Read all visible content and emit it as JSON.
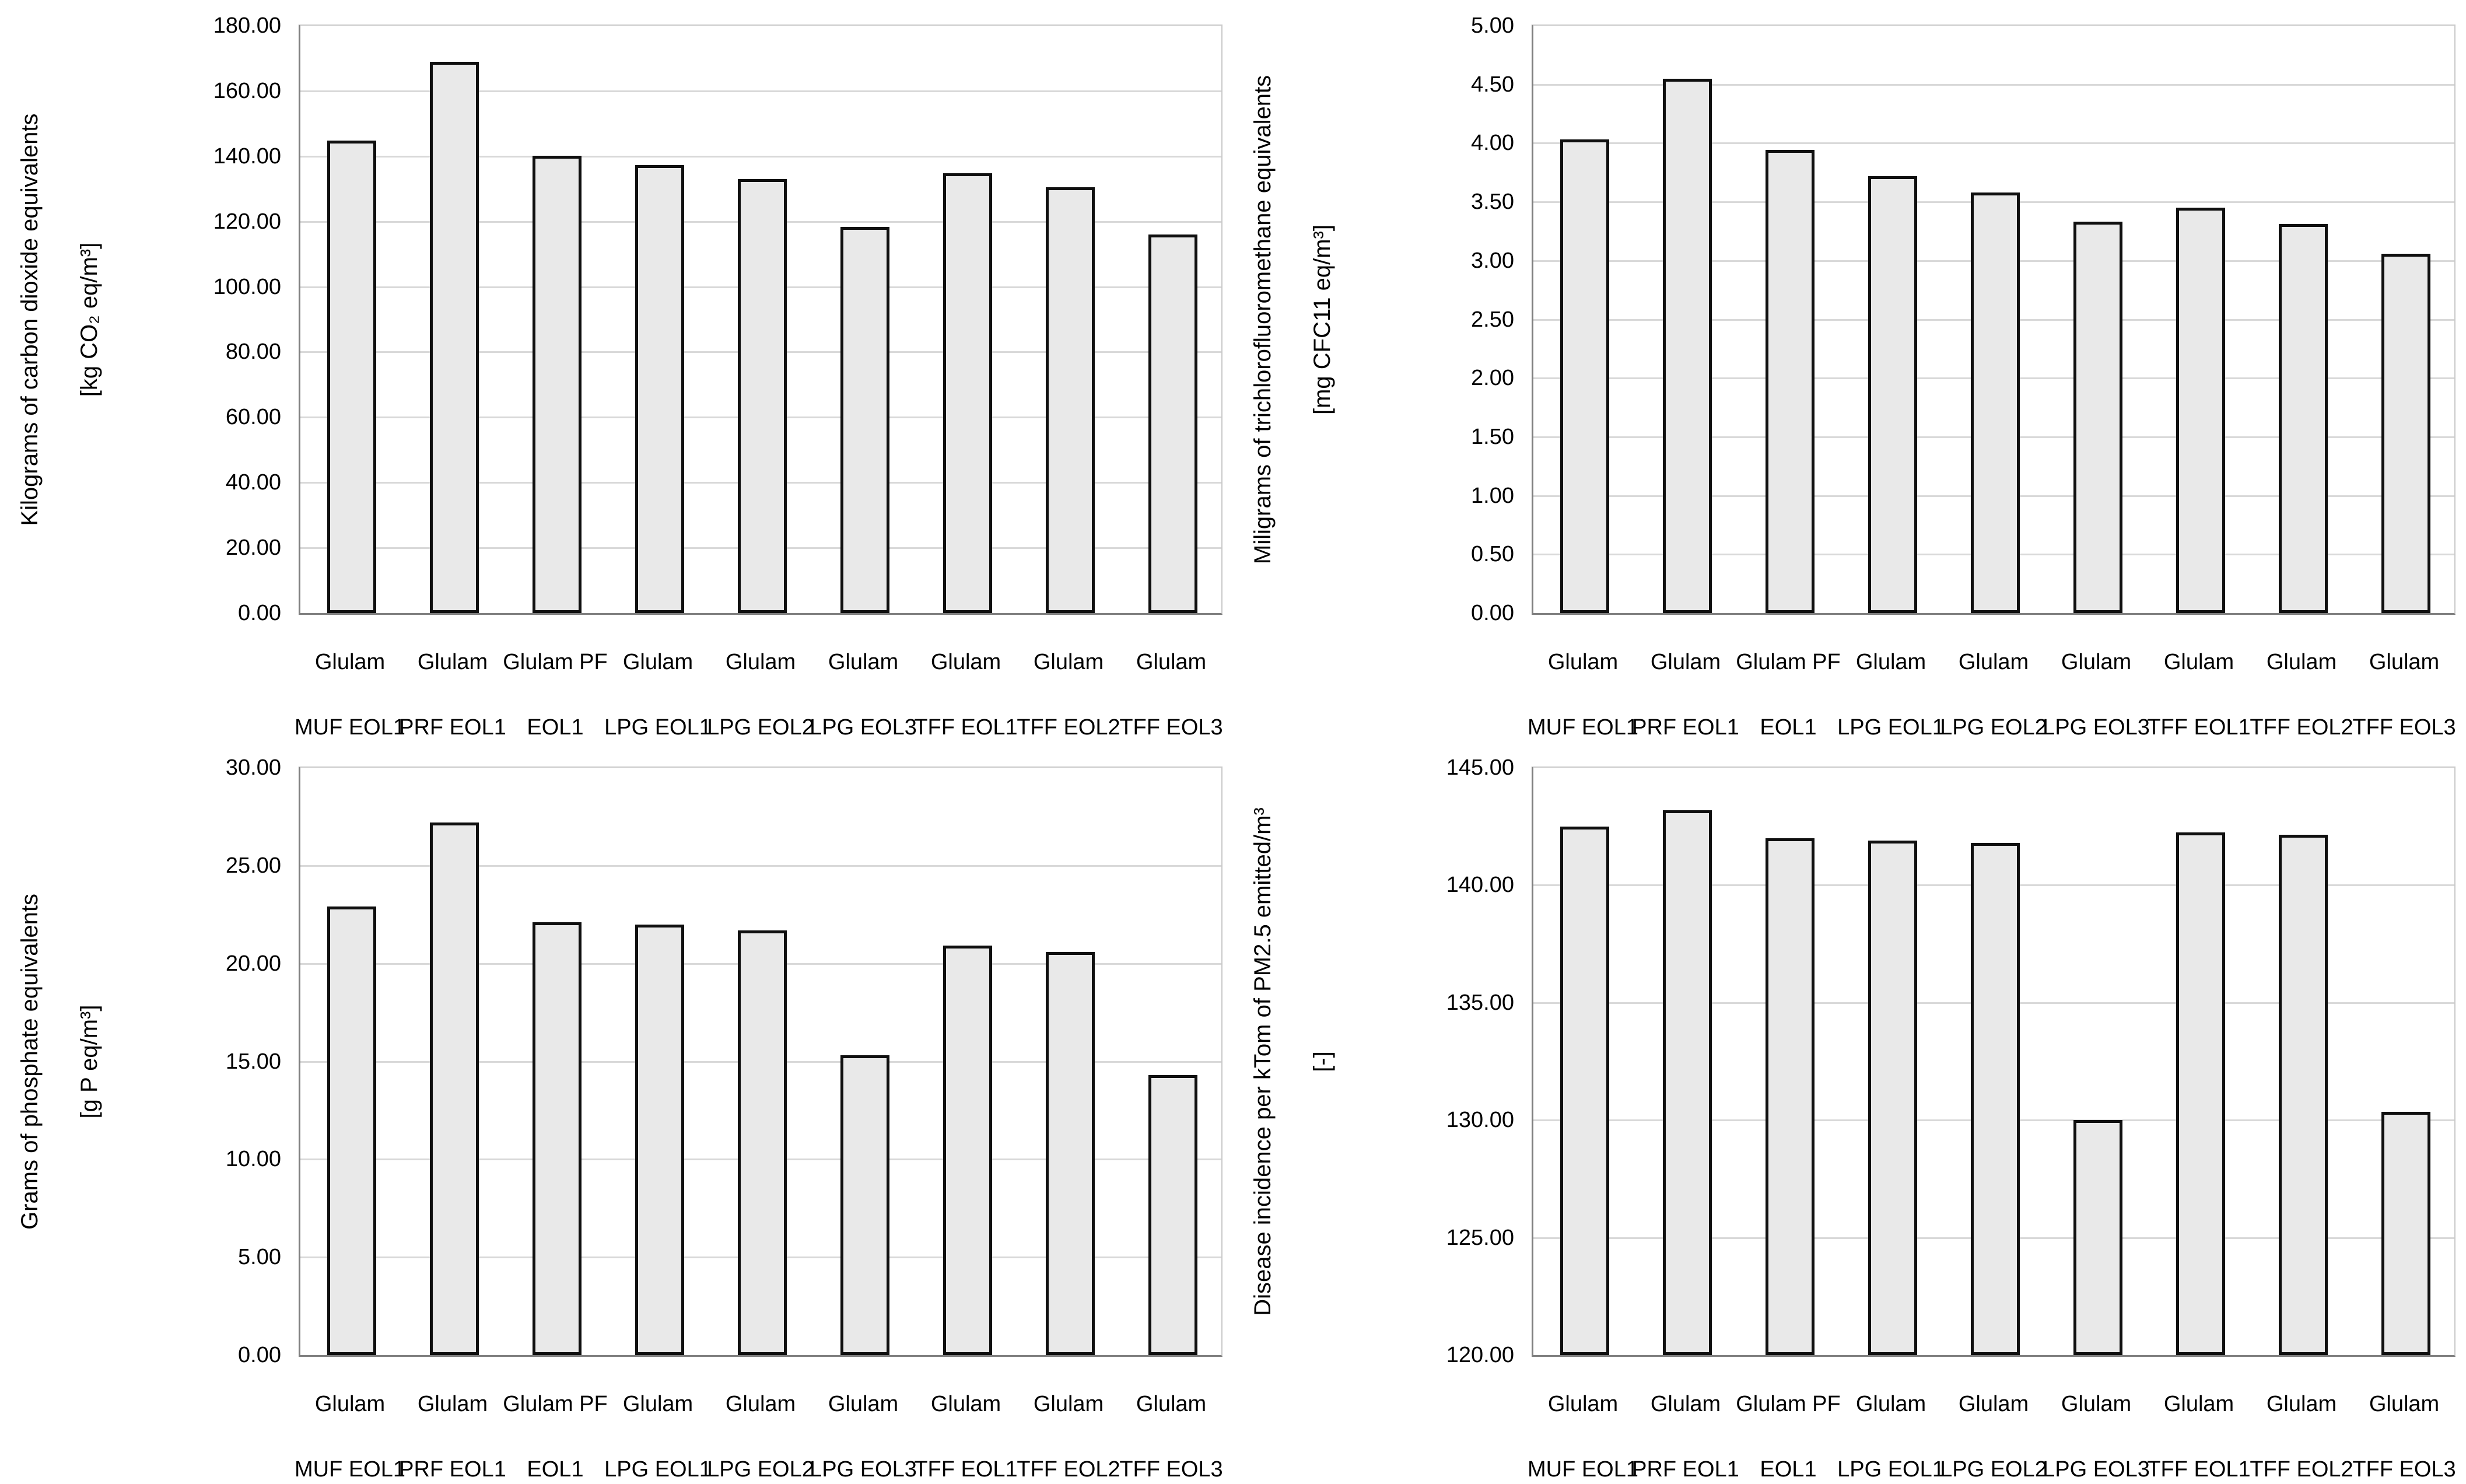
{
  "page": {
    "background": "#FFFFFF",
    "description": "Four bar charts comparing nine glulam adhesive/end-of-life scenarios across environmental impact categories"
  },
  "style": {
    "bar_fill": "#E9E9E9",
    "bar_border": "#0F0F0F",
    "gridline_color": "#D9D9D9",
    "axis_line_color": "#7F7F7F",
    "text_color": "#000000"
  },
  "chart_data": [
    {
      "type": "bar",
      "position": "top-left",
      "title": "",
      "ylabel_line1": "Kilograms of carbon dioxide equivalents",
      "ylabel_line2": "[kg CO₂ eq/m³]",
      "xlabel": "",
      "ylim": [
        0,
        180
      ],
      "ytick_step": 20,
      "tick_decimals": 2,
      "grid": true,
      "legend": "none",
      "categories": [
        [
          "Glulam",
          "MUF EOL1"
        ],
        [
          "Glulam",
          "PRF EOL1"
        ],
        [
          "Glulam PF",
          "EOL1"
        ],
        [
          "Glulam",
          "LPG EOL1"
        ],
        [
          "Glulam",
          "LPG EOL2"
        ],
        [
          "Glulam",
          "LPG EOL3"
        ],
        [
          "Glulam",
          "TFF EOL1"
        ],
        [
          "Glulam",
          "TFF EOL2"
        ],
        [
          "Glulam",
          "TFF EOL3"
        ]
      ],
      "values": [
        144.7,
        169.0,
        140.1,
        137.2,
        132.9,
        118.4,
        134.8,
        130.5,
        116.0
      ]
    },
    {
      "type": "bar",
      "position": "top-right",
      "title": "",
      "ylabel_line1": "Miligrams of trichlorofluoromethane equivalents",
      "ylabel_line2": "[mg CFC11 eq/m³]",
      "xlabel": "",
      "ylim": [
        0,
        5
      ],
      "ytick_step": 0.5,
      "tick_decimals": 2,
      "grid": true,
      "legend": "none",
      "categories": [
        [
          "Glulam",
          "MUF EOL1"
        ],
        [
          "Glulam",
          "PRF EOL1"
        ],
        [
          "Glulam PF",
          "EOL1"
        ],
        [
          "Glulam",
          "LPG EOL1"
        ],
        [
          "Glulam",
          "LPG EOL2"
        ],
        [
          "Glulam",
          "LPG EOL3"
        ],
        [
          "Glulam",
          "TFF EOL1"
        ],
        [
          "Glulam",
          "TFF EOL2"
        ],
        [
          "Glulam",
          "TFF EOL3"
        ]
      ],
      "values": [
        4.03,
        4.55,
        3.94,
        3.72,
        3.58,
        3.33,
        3.45,
        3.31,
        3.06
      ]
    },
    {
      "type": "bar",
      "position": "bottom-left",
      "title": "",
      "ylabel_line1": "Grams of phosphate equivalents",
      "ylabel_line2": "[g P eq/m³]",
      "xlabel": "",
      "ylim": [
        0,
        30
      ],
      "ytick_step": 5,
      "tick_decimals": 2,
      "grid": true,
      "legend": "none",
      "categories": [
        [
          "Glulam",
          "MUF EOL1"
        ],
        [
          "Glulam",
          "PRF EOL1"
        ],
        [
          "Glulam PF",
          "EOL1"
        ],
        [
          "Glulam",
          "LPG EOL1"
        ],
        [
          "Glulam",
          "LPG EOL2"
        ],
        [
          "Glulam",
          "LPG EOL3"
        ],
        [
          "Glulam",
          "TFF EOL1"
        ],
        [
          "Glulam",
          "TFF EOL2"
        ],
        [
          "Glulam",
          "TFF EOL3"
        ]
      ],
      "values": [
        22.9,
        27.2,
        22.1,
        22.0,
        21.7,
        15.3,
        20.9,
        20.6,
        14.3
      ]
    },
    {
      "type": "bar",
      "position": "bottom-right",
      "title": "",
      "ylabel_line1": "Disease incidence per kTom of PM2.5 emitted/m³",
      "ylabel_line2": "[-]",
      "xlabel": "",
      "ylim": [
        120,
        145
      ],
      "ytick_step": 5,
      "tick_decimals": 2,
      "grid": true,
      "legend": "none",
      "categories": [
        [
          "Glulam",
          "MUF EOL1"
        ],
        [
          "Glulam",
          "PRF EOL1"
        ],
        [
          "Glulam PF",
          "EOL1"
        ],
        [
          "Glulam",
          "LPG EOL1"
        ],
        [
          "Glulam",
          "LPG EOL2"
        ],
        [
          "Glulam",
          "LPG EOL3"
        ],
        [
          "Glulam",
          "TFF EOL1"
        ],
        [
          "Glulam",
          "TFF EOL2"
        ],
        [
          "Glulam",
          "TFF EOL3"
        ]
      ],
      "values": [
        142.5,
        143.2,
        142.0,
        141.9,
        141.8,
        130.0,
        142.25,
        142.15,
        130.35
      ]
    }
  ]
}
